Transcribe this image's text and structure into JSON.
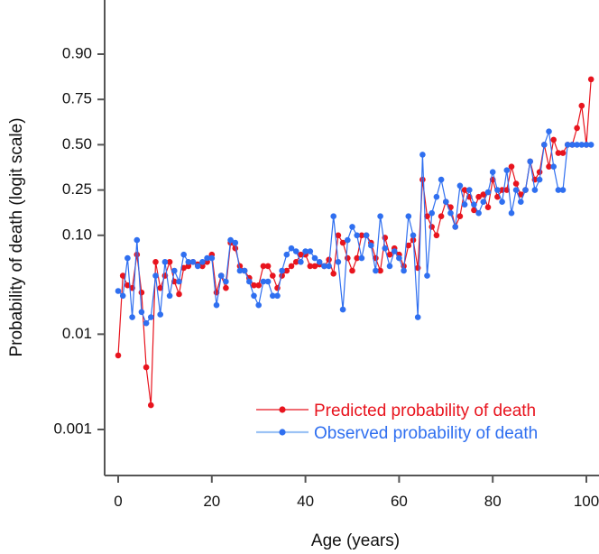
{
  "colors": {
    "predicted": "#e8141e",
    "observed": "#2f6ff0",
    "observed_legend_line": "#9cc3f5",
    "axis": "#555555"
  },
  "chart_data": {
    "type": "line",
    "title": "",
    "xlabel": "Age (years)",
    "ylabel": "Probability of death (logit scale)",
    "yscale": "logit",
    "xlim": [
      -3,
      103
    ],
    "ylim": [
      0.0004,
      0.97
    ],
    "x_ticks": [
      0,
      20,
      40,
      60,
      80,
      100
    ],
    "x_tick_labels": [
      "0",
      "20",
      "40",
      "60",
      "80",
      "100"
    ],
    "y_ticks": [
      0.001,
      0.01,
      0.1,
      0.25,
      0.5,
      0.75,
      0.9
    ],
    "y_tick_labels": [
      "0.001",
      "0.01",
      "0.10",
      "0.25",
      "0.50",
      "0.75",
      "0.90"
    ],
    "legend": {
      "position": "bottom-right",
      "entries": [
        "Predicted probability of death",
        "Observed probability of death"
      ]
    },
    "x": [
      0,
      1,
      2,
      3,
      4,
      5,
      6,
      7,
      8,
      9,
      10,
      11,
      12,
      13,
      14,
      15,
      16,
      17,
      18,
      19,
      20,
      21,
      22,
      23,
      24,
      25,
      26,
      27,
      28,
      29,
      30,
      31,
      32,
      33,
      34,
      35,
      36,
      37,
      38,
      39,
      40,
      41,
      42,
      43,
      44,
      45,
      46,
      47,
      48,
      49,
      50,
      51,
      52,
      53,
      54,
      55,
      56,
      57,
      58,
      59,
      60,
      61,
      62,
      63,
      64,
      65,
      66,
      67,
      68,
      69,
      70,
      71,
      72,
      73,
      74,
      75,
      76,
      77,
      78,
      79,
      80,
      81,
      82,
      83,
      84,
      85,
      86,
      87,
      88,
      89,
      90,
      91,
      92,
      93,
      94,
      95,
      96,
      97,
      98,
      99,
      100,
      101
    ],
    "series": [
      {
        "name": "Predicted probability of death",
        "values": [
          0.006,
          0.04,
          0.032,
          0.03,
          0.065,
          0.027,
          0.0045,
          0.0018,
          0.055,
          0.03,
          0.04,
          0.055,
          0.035,
          0.026,
          0.048,
          0.05,
          0.055,
          0.052,
          0.05,
          0.055,
          0.065,
          0.027,
          0.04,
          0.03,
          0.085,
          0.075,
          0.05,
          0.045,
          0.038,
          0.032,
          0.032,
          0.05,
          0.05,
          0.04,
          0.03,
          0.04,
          0.045,
          0.05,
          0.055,
          0.065,
          0.065,
          0.05,
          0.05,
          0.052,
          0.05,
          0.058,
          0.042,
          0.1,
          0.085,
          0.06,
          0.045,
          0.06,
          0.1,
          0.1,
          0.085,
          0.06,
          0.045,
          0.095,
          0.065,
          0.075,
          0.065,
          0.05,
          0.08,
          0.09,
          0.048,
          0.3,
          0.15,
          0.12,
          0.1,
          0.15,
          0.2,
          0.18,
          0.12,
          0.15,
          0.25,
          0.22,
          0.17,
          0.22,
          0.23,
          0.18,
          0.3,
          0.22,
          0.25,
          0.25,
          0.37,
          0.28,
          0.23,
          0.25,
          0.4,
          0.3,
          0.34,
          0.5,
          0.37,
          0.53,
          0.45,
          0.45,
          0.5,
          0.5,
          0.6,
          0.72,
          0.5,
          0.83
        ]
      },
      {
        "name": "Observed probability of death",
        "values": [
          0.028,
          0.025,
          0.06,
          0.015,
          0.09,
          0.017,
          0.013,
          0.015,
          0.04,
          0.016,
          0.055,
          0.025,
          0.045,
          0.035,
          0.065,
          0.055,
          0.055,
          0.05,
          0.055,
          0.06,
          0.06,
          0.02,
          0.04,
          0.035,
          0.09,
          0.085,
          0.045,
          0.045,
          0.035,
          0.025,
          0.02,
          0.035,
          0.035,
          0.025,
          0.025,
          0.045,
          0.065,
          0.075,
          0.07,
          0.055,
          0.07,
          0.07,
          0.06,
          0.055,
          0.05,
          0.05,
          0.15,
          0.055,
          0.018,
          0.09,
          0.12,
          0.1,
          0.06,
          0.1,
          0.08,
          0.045,
          0.15,
          0.075,
          0.05,
          0.07,
          0.06,
          0.045,
          0.15,
          0.1,
          0.015,
          0.44,
          0.04,
          0.16,
          0.22,
          0.3,
          0.2,
          0.16,
          0.12,
          0.27,
          0.19,
          0.25,
          0.19,
          0.16,
          0.2,
          0.24,
          0.34,
          0.25,
          0.2,
          0.35,
          0.16,
          0.25,
          0.2,
          0.25,
          0.4,
          0.25,
          0.3,
          0.5,
          0.58,
          0.37,
          0.25,
          0.25,
          0.5,
          0.5,
          0.5,
          0.5,
          0.5,
          0.5
        ]
      }
    ]
  }
}
